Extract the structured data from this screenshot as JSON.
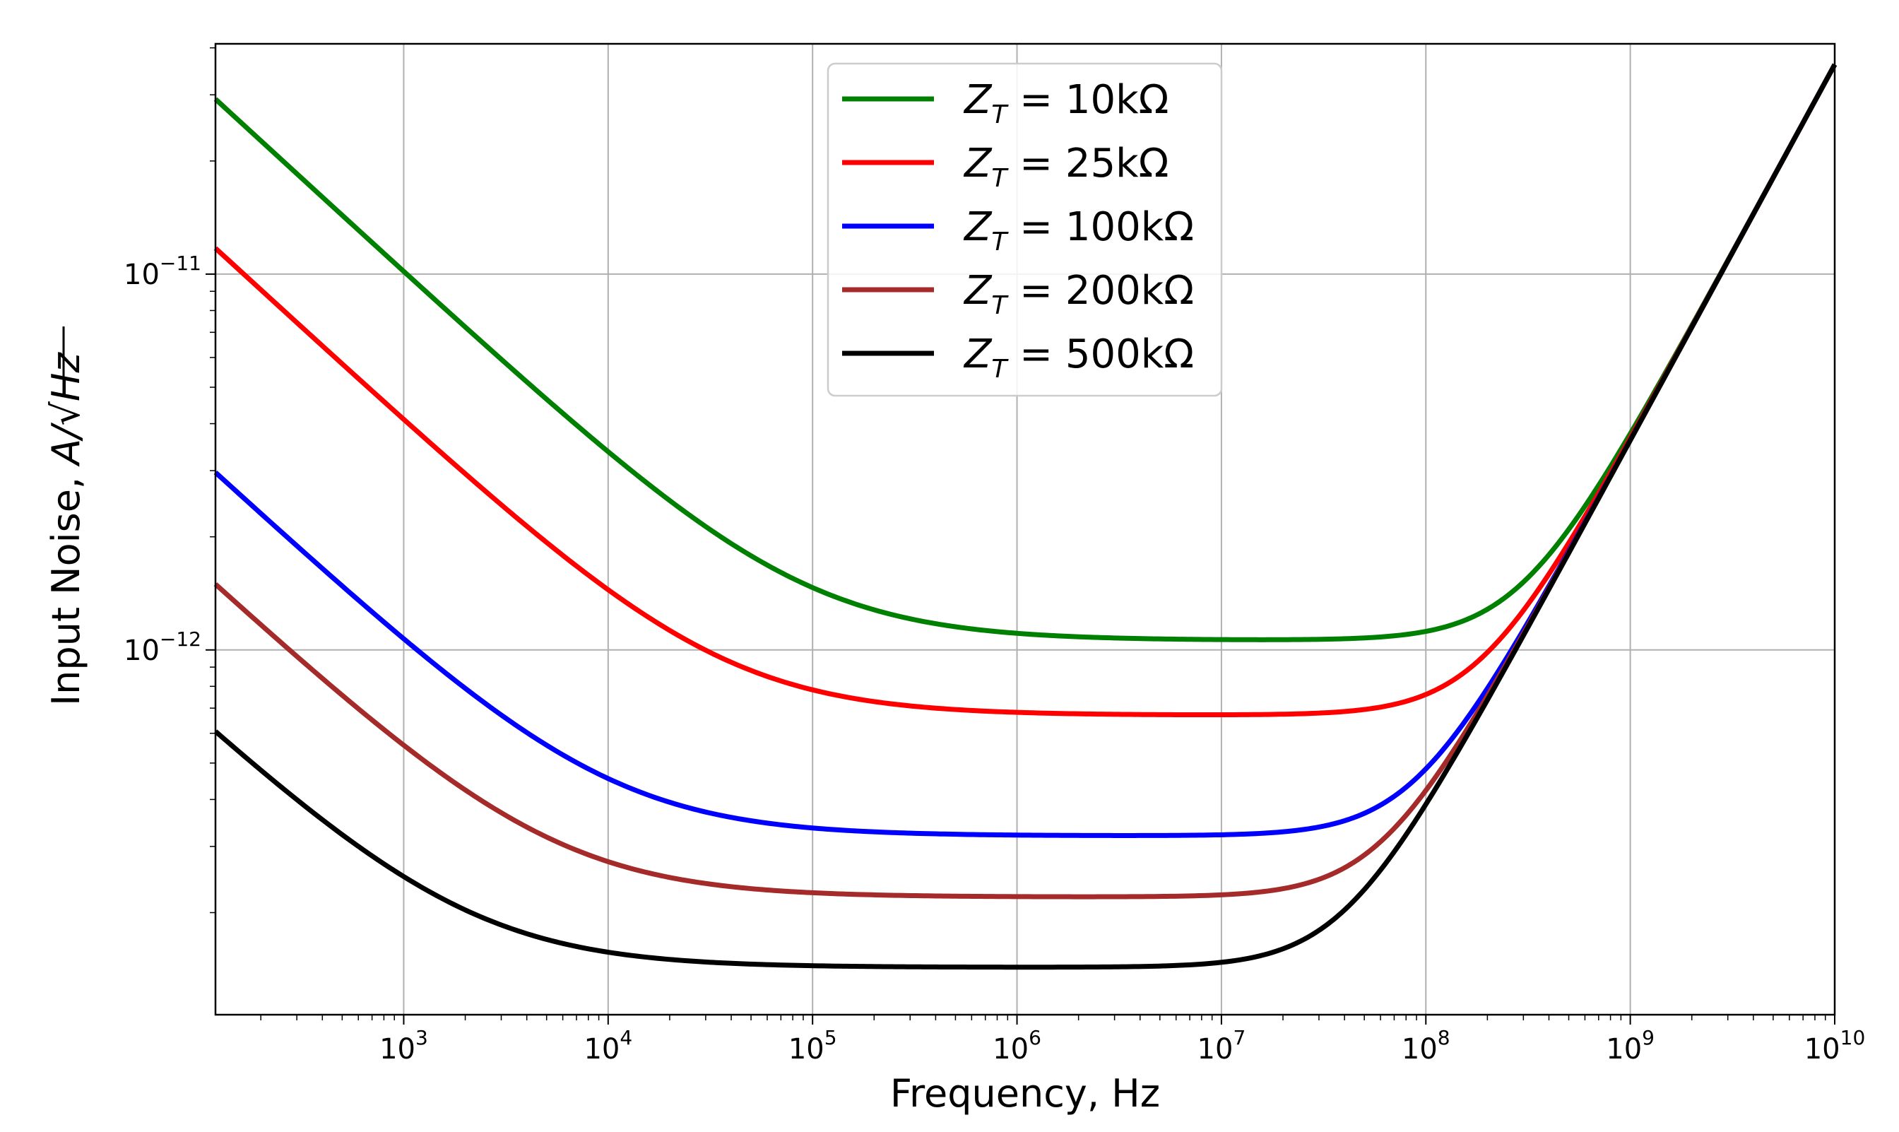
{
  "chart_data": {
    "type": "line",
    "xscale": "log",
    "yscale": "log",
    "xlabel": "Frequency, Hz",
    "ylabel_prefix": "Input Noise, ",
    "ylabel_units": "A/√Hz",
    "xlim": [
      120,
      10000000000
    ],
    "ylim": [
      1.07e-13,
      4.1e-11
    ],
    "grid": true,
    "legend_position": "top-center",
    "x_ticks": [
      {
        "base": "10",
        "exp": "3",
        "value": 1000
      },
      {
        "base": "10",
        "exp": "4",
        "value": 10000
      },
      {
        "base": "10",
        "exp": "5",
        "value": 100000
      },
      {
        "base": "10",
        "exp": "6",
        "value": 1000000
      },
      {
        "base": "10",
        "exp": "7",
        "value": 10000000
      },
      {
        "base": "10",
        "exp": "8",
        "value": 100000000
      },
      {
        "base": "10",
        "exp": "9",
        "value": 1000000000
      },
      {
        "base": "10",
        "exp": "10",
        "value": 10000000000
      }
    ],
    "y_ticks": [
      {
        "base": "10",
        "exp": "−11",
        "value": 1e-11
      },
      {
        "base": "10",
        "exp": "−12",
        "value": 1e-12
      }
    ],
    "series": [
      {
        "name": "Z_T = 10kΩ",
        "label_main": "Z",
        "label_sub": "T",
        "label_rest": " = 10kΩ",
        "color": "#008000",
        "c1": 2.92e-11,
        "c2": 1.06e-12,
        "c3": 3.61e-21
      },
      {
        "name": "Z_T = 25kΩ",
        "label_main": "Z",
        "label_sub": "T",
        "label_rest": " = 25kΩ",
        "color": "#ff0000",
        "c1": 1.17e-11,
        "c2": 6.7e-13,
        "c3": 3.61e-21
      },
      {
        "name": "Z_T = 100kΩ",
        "label_main": "Z",
        "label_sub": "T",
        "label_rest": " = 100kΩ",
        "color": "#0000ff",
        "c1": 2.95e-12,
        "c2": 3.2e-13,
        "c3": 3.61e-21
      },
      {
        "name": "Z_T = 200kΩ",
        "label_main": "Z",
        "label_sub": "T",
        "label_rest": " = 200kΩ",
        "color": "#a52a2a",
        "c1": 1.48e-12,
        "c2": 2.2e-13,
        "c3": 3.61e-21
      },
      {
        "name": "Z_T = 500kΩ",
        "label_main": "Z",
        "label_sub": "T",
        "label_rest": " = 500kΩ",
        "color": "#000000",
        "c1": 5.9e-13,
        "c2": 1.43e-13,
        "c3": 3.61e-21
      }
    ]
  }
}
